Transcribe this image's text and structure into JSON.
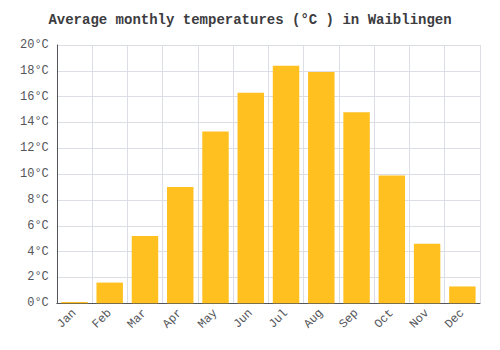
{
  "chart_data": {
    "type": "bar",
    "title": "Average monthly temperatures (°C ) in Waiblingen",
    "categories": [
      "Jan",
      "Feb",
      "Mar",
      "Apr",
      "May",
      "Jun",
      "Jul",
      "Aug",
      "Sep",
      "Oct",
      "Nov",
      "Dec"
    ],
    "values": [
      0.1,
      1.6,
      5.2,
      9.0,
      13.3,
      16.3,
      18.4,
      17.9,
      14.8,
      9.9,
      4.6,
      1.3
    ],
    "color": "#FFC020",
    "ylim": [
      0,
      20
    ],
    "yticks": [
      {
        "value": 0,
        "label": "0°C"
      },
      {
        "value": 2,
        "label": "2°C"
      },
      {
        "value": 4,
        "label": "4°C"
      },
      {
        "value": 6,
        "label": "6°C"
      },
      {
        "value": 8,
        "label": "8°C"
      },
      {
        "value": 10,
        "label": "10°C"
      },
      {
        "value": 12,
        "label": "12°C"
      },
      {
        "value": 14,
        "label": "14°C"
      },
      {
        "value": 16,
        "label": "16°C"
      },
      {
        "value": 18,
        "label": "18°C"
      },
      {
        "value": 20,
        "label": "20°C"
      }
    ],
    "grid": true
  }
}
